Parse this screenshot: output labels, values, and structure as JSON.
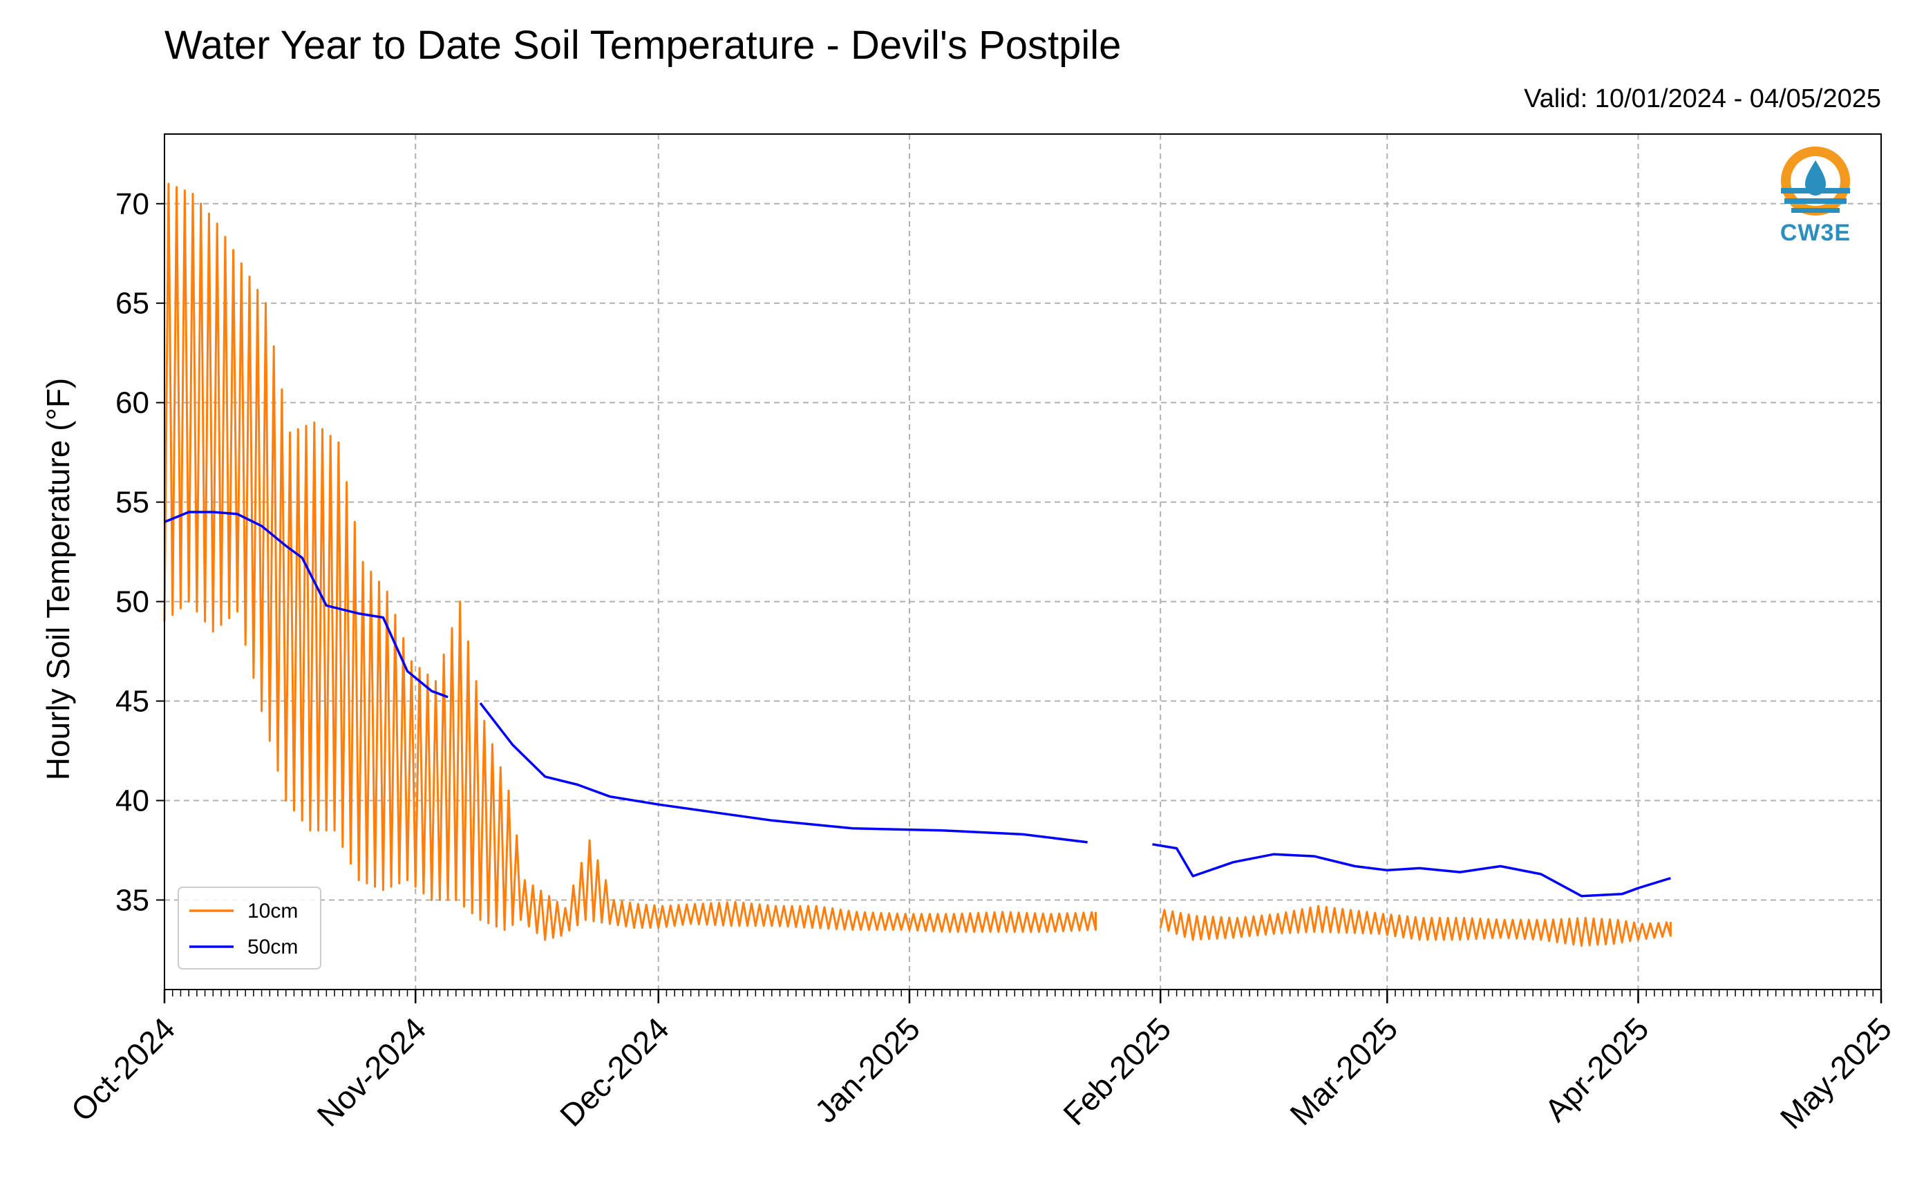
{
  "chart_data": {
    "type": "line",
    "title": "Water Year to Date Soil Temperature - Devil's Postpile",
    "subtitle": "Valid: 10/01/2024 - 04/05/2025",
    "ylabel": "Hourly Soil Temperature (°F)",
    "xlabel": "",
    "xlim": [
      "2024-10-01",
      "2025-05-01"
    ],
    "ylim": [
      30.5,
      73.5
    ],
    "x_ticks": [
      "Oct-2024",
      "Nov-2024",
      "Dec-2024",
      "Jan-2025",
      "Feb-2025",
      "Mar-2025",
      "Apr-2025",
      "May-2025"
    ],
    "y_ticks": [
      35,
      40,
      45,
      50,
      55,
      60,
      65,
      70
    ],
    "grid": true,
    "legend_position": "lower-left",
    "logo_text": "CW3E",
    "series": [
      {
        "name": "10cm",
        "color": "#ff7f0e",
        "note_daily_range": true,
        "x": [
          "2024-10-01",
          "2024-10-04",
          "2024-10-07",
          "2024-10-10",
          "2024-10-13",
          "2024-10-16",
          "2024-10-19",
          "2024-10-22",
          "2024-10-25",
          "2024-10-28",
          "2024-10-31",
          "2024-11-03",
          "2024-11-06",
          "2024-11-09",
          "2024-11-12",
          "2024-11-14",
          "2024-11-17",
          "2024-11-19",
          "2024-11-22",
          "2024-11-25",
          "2024-11-28",
          "2024-12-01",
          "2024-12-05",
          "2024-12-10",
          "2024-12-15",
          "2024-12-20",
          "2024-12-25",
          "2024-12-31",
          "2025-01-06",
          "2025-01-12",
          "2025-01-18",
          "2025-01-24",
          "2025-01-25",
          "2025-02-01",
          "2025-02-05",
          "2025-02-10",
          "2025-02-15",
          "2025-02-20",
          "2025-02-28",
          "2025-03-05",
          "2025-03-10",
          "2025-03-15",
          "2025-03-20",
          "2025-03-25",
          "2025-03-29",
          "2025-04-01",
          "2025-04-05"
        ],
        "max": [
          71.0,
          70.5,
          69.0,
          67.0,
          65.0,
          58.5,
          59.0,
          58.0,
          52.0,
          50.5,
          47.0,
          46.0,
          50.0,
          44.0,
          40.5,
          36.0,
          35.2,
          34.6,
          38.0,
          35.0,
          34.8,
          34.7,
          34.8,
          34.9,
          34.7,
          34.7,
          34.4,
          34.3,
          34.3,
          34.4,
          34.3,
          34.4,
          null,
          34.5,
          34.2,
          34.1,
          34.3,
          34.7,
          34.3,
          34.1,
          34.1,
          34.0,
          34.0,
          34.1,
          34.0,
          33.8,
          33.9
        ],
        "min": [
          49.0,
          50.0,
          48.5,
          49.5,
          44.5,
          40.0,
          38.5,
          38.5,
          36.0,
          35.5,
          36.0,
          35.0,
          35.0,
          34.0,
          33.5,
          34.0,
          33.0,
          33.2,
          34.0,
          33.8,
          33.6,
          33.6,
          33.8,
          33.7,
          33.7,
          33.6,
          33.5,
          33.5,
          33.4,
          33.4,
          33.4,
          33.5,
          null,
          33.6,
          33.0,
          33.1,
          33.3,
          33.4,
          33.3,
          33.0,
          33.0,
          33.1,
          33.0,
          32.7,
          32.8,
          33.0,
          33.2
        ]
      },
      {
        "name": "50cm",
        "color": "#0000ff",
        "x": [
          "2024-10-01",
          "2024-10-04",
          "2024-10-07",
          "2024-10-10",
          "2024-10-13",
          "2024-10-16",
          "2024-10-18",
          "2024-10-21",
          "2024-10-25",
          "2024-10-28",
          "2024-10-31",
          "2024-11-03",
          "2024-11-05",
          "2024-11-06",
          "2024-11-09",
          "2024-11-13",
          "2024-11-17",
          "2024-11-21",
          "2024-11-25",
          "2024-12-01",
          "2024-12-08",
          "2024-12-15",
          "2024-12-25",
          "2025-01-05",
          "2025-01-15",
          "2025-01-23",
          "2025-01-24",
          "2025-01-31",
          "2025-02-03",
          "2025-02-05",
          "2025-02-10",
          "2025-02-15",
          "2025-02-20",
          "2025-02-25",
          "2025-03-01",
          "2025-03-05",
          "2025-03-10",
          "2025-03-15",
          "2025-03-20",
          "2025-03-25",
          "2025-03-30",
          "2025-04-01",
          "2025-04-05"
        ],
        "y": [
          54.0,
          54.5,
          54.5,
          54.4,
          53.8,
          52.8,
          52.2,
          49.8,
          49.4,
          49.2,
          46.5,
          45.5,
          45.2,
          null,
          44.9,
          42.8,
          41.2,
          40.8,
          40.2,
          39.8,
          39.4,
          39.0,
          38.6,
          38.5,
          38.3,
          37.9,
          null,
          37.8,
          37.6,
          36.2,
          36.9,
          37.3,
          37.2,
          36.7,
          36.5,
          36.6,
          36.4,
          36.7,
          36.3,
          35.2,
          35.3,
          35.6,
          36.1
        ]
      }
    ]
  }
}
